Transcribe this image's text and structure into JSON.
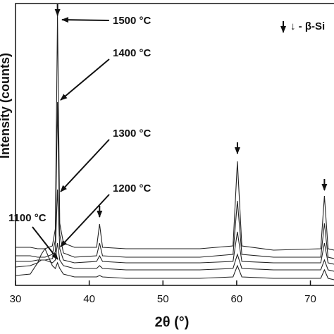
{
  "chart_data": {
    "type": "line",
    "xlabel": "2θ (°)",
    "ylabel": "Intensity (counts)",
    "legend_text": "↓ - β-Si",
    "xlim": [
      30,
      73.2
    ],
    "xticks": [
      30,
      40,
      50,
      60,
      70
    ],
    "ylim": [
      0,
      100
    ],
    "x": [
      30,
      32,
      33,
      33.5,
      34,
      35,
      35.4,
      35.7,
      36,
      36.5,
      38,
      41,
      41.4,
      41.8,
      45,
      55,
      59.5,
      60.1,
      60.7,
      65,
      71.4,
      71.9,
      72.4,
      73.2
    ],
    "series": [
      {
        "name": "1500 °C",
        "color": "#222222",
        "values": [
          13.5,
          13.5,
          13,
          13,
          13,
          14,
          20,
          95.75,
          22,
          15,
          13.5,
          13.5,
          21.75,
          13.5,
          13,
          13,
          14,
          44,
          14,
          12.5,
          13,
          31.75,
          13,
          12.5
        ]
      },
      {
        "name": "1400 °C",
        "color": "#222222",
        "values": [
          10.5,
          10.5,
          10,
          10,
          10,
          11,
          16,
          65,
          18,
          11.5,
          10,
          10.5,
          15,
          10.5,
          10,
          10,
          11,
          30,
          11,
          10,
          10,
          22,
          10,
          9.5
        ]
      },
      {
        "name": "1300 °C",
        "color": "#222222",
        "values": [
          8.5,
          8.5,
          9,
          9,
          9,
          9.5,
          12,
          34,
          13,
          9,
          8,
          8.5,
          10.5,
          8.5,
          8,
          8,
          8.5,
          19,
          8.5,
          8,
          8,
          15,
          8,
          7.5
        ]
      },
      {
        "name": "1200 °C",
        "color": "#222222",
        "values": [
          6.5,
          7,
          8,
          9,
          9,
          8,
          9,
          15,
          9,
          7,
          6,
          6,
          7,
          6,
          5.5,
          5.5,
          6,
          11,
          6,
          5.5,
          5.5,
          9,
          5.5,
          5
        ]
      },
      {
        "name": "1100 °C",
        "color": "#222222",
        "values": [
          3.5,
          4,
          8,
          11,
          13,
          7,
          6,
          8,
          6,
          4,
          3,
          3,
          3.5,
          3,
          2.5,
          2.5,
          3,
          7,
          3,
          2.5,
          2.5,
          5.5,
          2.5,
          2
        ]
      }
    ]
  }
}
